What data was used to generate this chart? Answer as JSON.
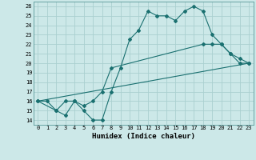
{
  "xlabel": "Humidex (Indice chaleur)",
  "bg_color": "#cce8e8",
  "grid_color": "#aad0d0",
  "line_color": "#1a7070",
  "line1_x": [
    0,
    1,
    2,
    3,
    4,
    5,
    6,
    7,
    8,
    9,
    10,
    11,
    12,
    13,
    14,
    15,
    16,
    17,
    18,
    19,
    20,
    21,
    22,
    23
  ],
  "line1_y": [
    16,
    16,
    15,
    14.5,
    16,
    15,
    14,
    14,
    17,
    19.5,
    22.5,
    23.5,
    25.5,
    25,
    25,
    24.5,
    25.5,
    26,
    25.5,
    23,
    22,
    21,
    20,
    20
  ],
  "line2_x": [
    0,
    2,
    3,
    4,
    5,
    6,
    7,
    8,
    18,
    19,
    20,
    21,
    22,
    23
  ],
  "line2_y": [
    16,
    15,
    16,
    16,
    15.5,
    16,
    17,
    19.5,
    22,
    22,
    22,
    21,
    20.5,
    20
  ],
  "line3_x": [
    0,
    23
  ],
  "line3_y": [
    16,
    20
  ],
  "xlim": [
    -0.5,
    23.5
  ],
  "ylim": [
    13.5,
    26.5
  ],
  "xticks": [
    0,
    1,
    2,
    3,
    4,
    5,
    6,
    7,
    8,
    9,
    10,
    11,
    12,
    13,
    14,
    15,
    16,
    17,
    18,
    19,
    20,
    21,
    22,
    23
  ],
  "yticks": [
    14,
    15,
    16,
    17,
    18,
    19,
    20,
    21,
    22,
    23,
    24,
    25,
    26
  ]
}
